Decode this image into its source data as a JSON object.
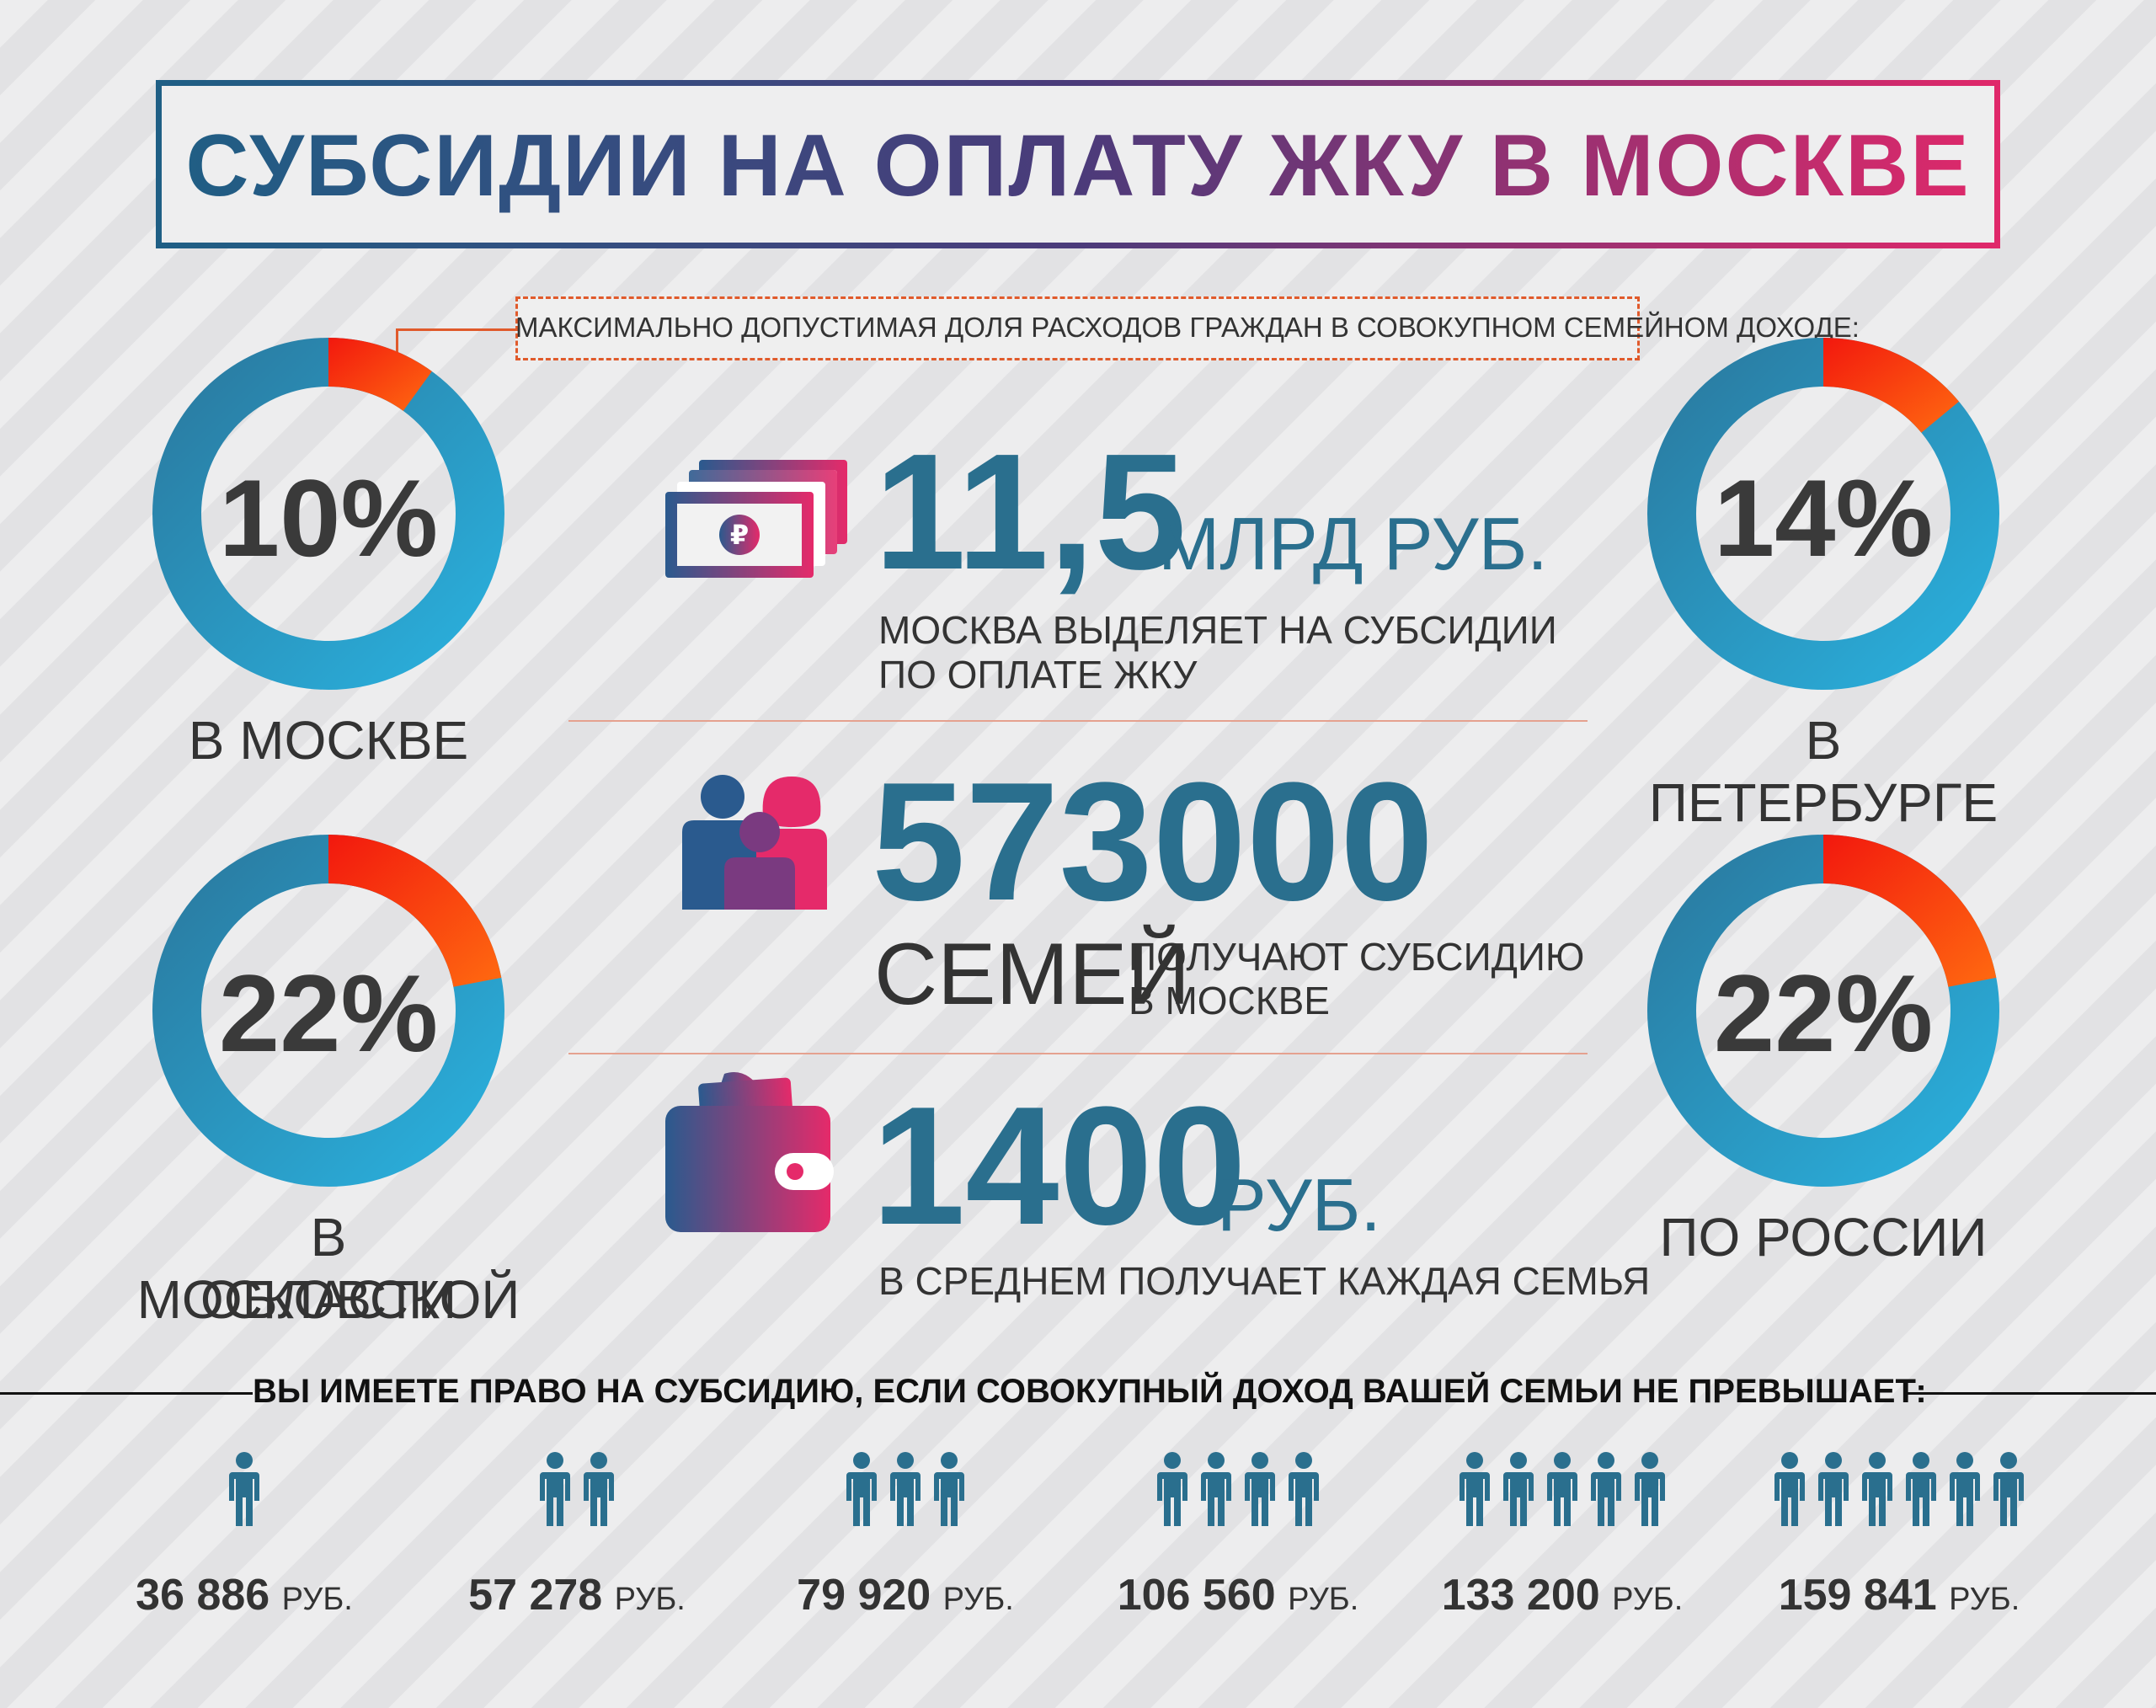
{
  "title": "СУБСИДИИ НА ОПЛАТУ ЖКУ В МОСКВЕ",
  "note": "МАКСИМАЛЬНО ДОПУСТИМАЯ ДОЛЯ РАСХОДОВ ГРАЖДАН В СОВОКУПНОМ СЕМЕЙНОМ ДОХОДЕ:",
  "colors": {
    "blue": "#2aa3cf",
    "dark_blue": "#2a6f8e",
    "red": "#f02010",
    "orange": "#ff6a10",
    "magenta": "#e0286a"
  },
  "donuts": [
    {
      "value": "10%",
      "fraction": 0.1,
      "label_line1": "В МОСКВЕ",
      "label_line2": ""
    },
    {
      "value": "14%",
      "fraction": 0.14,
      "label_line1": "В ПЕТЕРБУРГЕ",
      "label_line2": ""
    },
    {
      "value": "22%",
      "fraction": 0.22,
      "label_line1": "В МОСКОВСКОЙ",
      "label_line2": "ОБЛАСТИ"
    },
    {
      "value": "22%",
      "fraction": 0.22,
      "label_line1": "ПО РОССИИ",
      "label_line2": ""
    }
  ],
  "stats": {
    "budget": {
      "icon": "money-icon",
      "number": "11,5",
      "unit": "МЛРД РУБ.",
      "desc_line1": "МОСКВА ВЫДЕЛЯЕТ НА СУБСИДИИ",
      "desc_line2": "ПО ОПЛАТЕ ЖКУ"
    },
    "families": {
      "icon": "family-icon",
      "number": "573000",
      "word": "СЕМЕЙ",
      "desc_line1": "ПОЛУЧАЮТ СУБСИДИЮ",
      "desc_line2": "В МОСКВЕ"
    },
    "average": {
      "icon": "wallet-icon",
      "number": "1400",
      "unit": "РУБ.",
      "desc": "В СРЕДНЕМ ПОЛУЧАЕТ КАЖДАЯ СЕМЬЯ"
    }
  },
  "eligibility": {
    "heading": "ВЫ ИМЕЕТЕ ПРАВО НА СУБСИДИЮ, ЕСЛИ СОВОКУПНЫЙ ДОХОД ВАШЕЙ СЕМЬИ НЕ ПРЕВЫШАЕТ:",
    "unit": "РУБ.",
    "groups": [
      {
        "people": 1,
        "amount": "36 886"
      },
      {
        "people": 2,
        "amount": "57 278"
      },
      {
        "people": 3,
        "amount": "79 920"
      },
      {
        "people": 4,
        "amount": "106 560"
      },
      {
        "people": 5,
        "amount": "133 200"
      },
      {
        "people": 6,
        "amount": "159 841"
      }
    ]
  }
}
